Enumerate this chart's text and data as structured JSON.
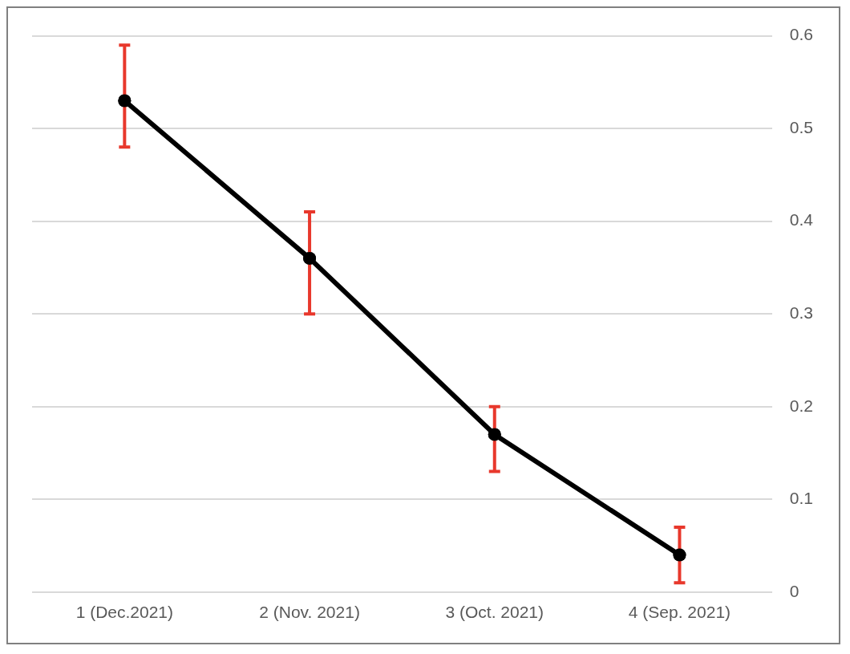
{
  "chart_data": {
    "type": "line",
    "categories": [
      "1 (Dec.2021)",
      "2 (Nov. 2021)",
      "3 (Oct. 2021)",
      "4 (Sep. 2021)"
    ],
    "series": [
      {
        "color": "#000000",
        "values": [
          0.53,
          0.36,
          0.17,
          0.04
        ],
        "errors": [
          [
            0.48,
            0.59
          ],
          [
            0.3,
            0.41
          ],
          [
            0.13,
            0.2
          ],
          [
            0.01,
            0.07
          ]
        ]
      }
    ],
    "ylim": [
      0,
      0.6
    ],
    "yticks": [
      0,
      0.1,
      0.2,
      0.3,
      0.4,
      0.5,
      0.6
    ],
    "grid": "y",
    "legend": false,
    "marker": "circle",
    "line_style": "solid"
  }
}
